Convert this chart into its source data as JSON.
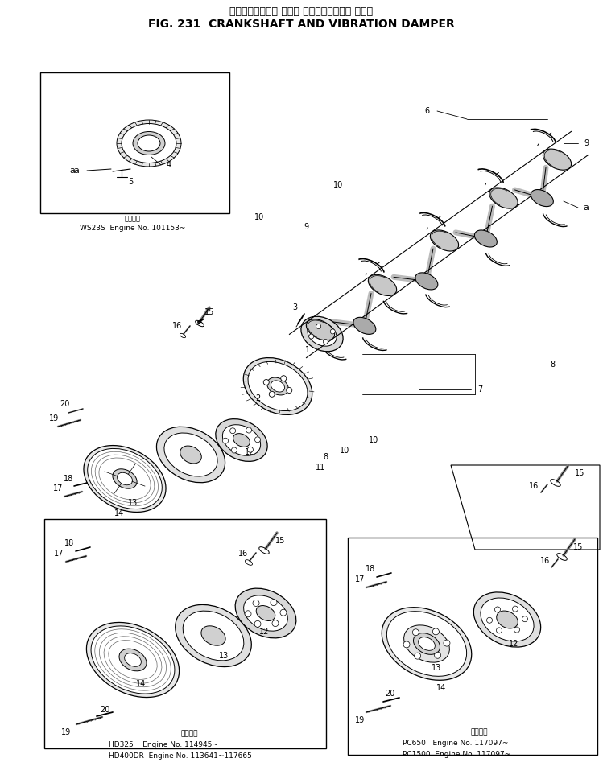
{
  "title_japanese": "クランクシャフト および バイブレーション ダンパ",
  "title_english": "FIG. 231  CRANKSHAFT AND VIBRATION DAMPER",
  "bg_color": "#ffffff",
  "fig_width": 7.49,
  "fig_height": 9.73,
  "dpi": 100,
  "inset_top_label": "適用号機",
  "inset_top_line": "WS23S  Engine No. 101153~",
  "bottom_left_label": "適用号機",
  "bottom_left_lines": [
    "HD325    Engine No. 114945~",
    "HD400DR  Engine No. 113641~117665"
  ],
  "bottom_right_label": "適用号機",
  "bottom_right_lines": [
    "PC650   Engine No. 117097~",
    "PC1500  Engine No. 117097~"
  ]
}
